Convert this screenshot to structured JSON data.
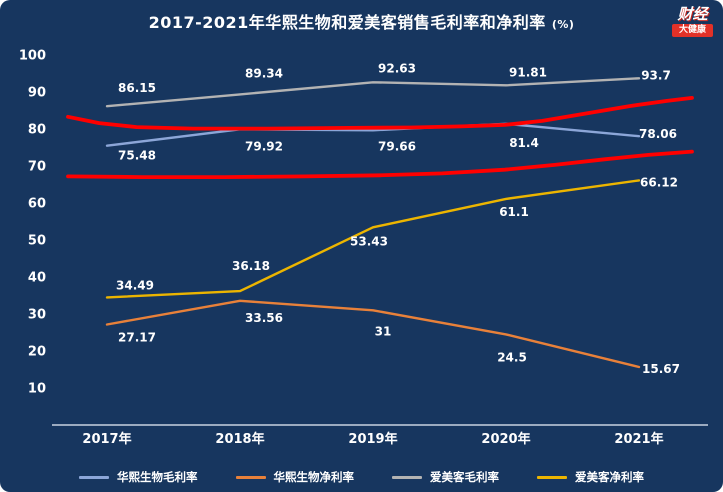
{
  "header": {
    "title": "2017-2021年华熙生物和爱美客销售毛利率和净利率",
    "title_suffix": "(%)"
  },
  "logo": {
    "line1": "财经",
    "line2": "大健康"
  },
  "colors": {
    "background": "#17365f",
    "text": "#ffffff",
    "axis": "#c9d2e0",
    "annotation_red": "#ff0000",
    "logo_red": "#e23128"
  },
  "chart_data": {
    "type": "line",
    "title": "2017-2021年华熙生物和爱美客销售毛利率和净利率 (%)",
    "categories": [
      "2017年",
      "2018年",
      "2019年",
      "2020年",
      "2021年"
    ],
    "series": [
      {
        "name": "华熙生物毛利率",
        "color": "#8ca6d8",
        "values": [
          75.48,
          79.92,
          79.66,
          81.4,
          78.06
        ]
      },
      {
        "name": "华熙生物净利率",
        "color": "#e8813a",
        "values": [
          27.17,
          33.56,
          31,
          24.5,
          15.67
        ]
      },
      {
        "name": "爱美客毛利率",
        "color": "#b3b3b3",
        "values": [
          86.15,
          89.34,
          92.63,
          91.81,
          93.7
        ]
      },
      {
        "name": "爱美客净利率",
        "color": "#ecb500",
        "values": [
          34.49,
          36.18,
          53.43,
          61.1,
          66.12
        ]
      }
    ],
    "annotations": [
      {
        "name": "freehand-red-line-upper",
        "color": "#ff0000",
        "points": [
          [
            0,
            83.3
          ],
          [
            0.05,
            81.6
          ],
          [
            0.11,
            80.5
          ],
          [
            0.2,
            80.1
          ],
          [
            0.32,
            80.1
          ],
          [
            0.45,
            80.3
          ],
          [
            0.55,
            80.4
          ],
          [
            0.63,
            80.7
          ],
          [
            0.7,
            81.1
          ],
          [
            0.76,
            82.2
          ],
          [
            0.83,
            84.2
          ],
          [
            0.9,
            86.2
          ],
          [
            0.96,
            87.6
          ],
          [
            1,
            88.4
          ]
        ]
      },
      {
        "name": "freehand-red-line-lower",
        "color": "#ff0000",
        "points": [
          [
            0,
            67.2
          ],
          [
            0.12,
            67.0
          ],
          [
            0.25,
            67.0
          ],
          [
            0.38,
            67.2
          ],
          [
            0.5,
            67.5
          ],
          [
            0.6,
            68.0
          ],
          [
            0.7,
            69.0
          ],
          [
            0.78,
            70.3
          ],
          [
            0.86,
            71.8
          ],
          [
            0.93,
            73.0
          ],
          [
            1,
            73.9
          ]
        ]
      }
    ],
    "ylim": [
      0,
      100
    ],
    "yticks": [
      10,
      20,
      30,
      40,
      50,
      60,
      70,
      80,
      90,
      100
    ],
    "grid": false,
    "legend_position": "bottom"
  }
}
